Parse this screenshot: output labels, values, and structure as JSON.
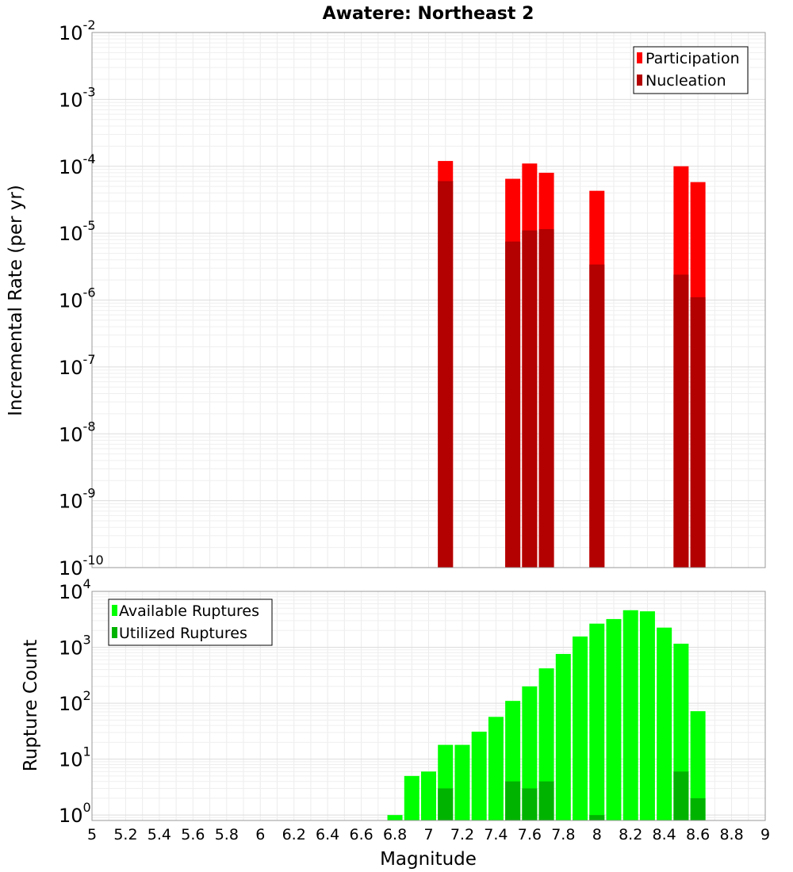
{
  "chart_data": [
    {
      "type": "bar",
      "title": "Awatere: Northeast 2",
      "xlabel": "",
      "ylabel": "Incremental Rate (per yr)",
      "yscale": "log",
      "ylim_exp": [
        -10,
        -2
      ],
      "xlim": [
        5,
        9
      ],
      "grid": true,
      "legend_position": "top-right",
      "series": [
        {
          "name": "Participation",
          "color": "#ff0000",
          "x": [
            7.1,
            7.5,
            7.6,
            7.7,
            8.0,
            8.5,
            8.6
          ],
          "values": [
            0.00012,
            6.5e-05,
            0.00011,
            8e-05,
            4.3e-05,
            0.0001,
            5.8e-05
          ]
        },
        {
          "name": "Nucleation",
          "color": "#b30000",
          "x": [
            7.1,
            7.5,
            7.6,
            7.7,
            8.0,
            8.5,
            8.6
          ],
          "values": [
            6e-05,
            7.5e-06,
            1.1e-05,
            1.15e-05,
            3.4e-06,
            2.4e-06,
            1.1e-06
          ]
        }
      ],
      "y_ticks": [
        {
          "base": "10",
          "exp": "-10"
        },
        {
          "base": "10",
          "exp": "-9"
        },
        {
          "base": "10",
          "exp": "-8"
        },
        {
          "base": "10",
          "exp": "-7"
        },
        {
          "base": "10",
          "exp": "-6"
        },
        {
          "base": "10",
          "exp": "-5"
        },
        {
          "base": "10",
          "exp": "-4"
        },
        {
          "base": "10",
          "exp": "-3"
        },
        {
          "base": "10",
          "exp": "-2"
        }
      ]
    },
    {
      "type": "bar",
      "xlabel": "Magnitude",
      "ylabel": "Rupture Count",
      "yscale": "log",
      "ylim": [
        0.8,
        10000
      ],
      "xlim": [
        5,
        9
      ],
      "grid": true,
      "legend_position": "top-left",
      "series": [
        {
          "name": "Available Ruptures",
          "color": "#00ff00",
          "x": [
            6.8,
            6.9,
            7.0,
            7.1,
            7.2,
            7.3,
            7.4,
            7.5,
            7.6,
            7.7,
            7.8,
            7.9,
            8.0,
            8.1,
            8.2,
            8.3,
            8.4,
            8.5,
            8.6
          ],
          "values": [
            1,
            5,
            6,
            18,
            18,
            31,
            57,
            110,
            200,
            420,
            760,
            1560,
            2650,
            3200,
            4600,
            4400,
            2250,
            1160,
            72
          ]
        },
        {
          "name": "Utilized Ruptures",
          "color": "#00b300",
          "x": [
            7.1,
            7.5,
            7.6,
            7.7,
            8.0,
            8.5,
            8.6
          ],
          "values": [
            3,
            4,
            3,
            4,
            1,
            6,
            2
          ]
        }
      ],
      "y_ticks": [
        {
          "base": "10",
          "exp": "0"
        },
        {
          "base": "10",
          "exp": "1"
        },
        {
          "base": "10",
          "exp": "2"
        },
        {
          "base": "10",
          "exp": "3"
        },
        {
          "base": "10",
          "exp": "4"
        }
      ],
      "x_ticks": [
        "5",
        "5.2",
        "5.4",
        "5.6",
        "5.8",
        "6",
        "6.2",
        "6.4",
        "6.6",
        "6.8",
        "7",
        "7.2",
        "7.4",
        "7.6",
        "7.8",
        "8",
        "8.2",
        "8.4",
        "8.6",
        "8.8",
        "9"
      ]
    }
  ]
}
